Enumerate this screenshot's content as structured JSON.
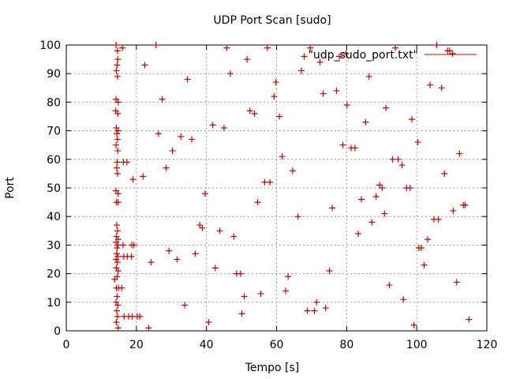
{
  "chart_data": {
    "type": "scatter",
    "title": "UDP Port Scan [sudo]",
    "xlabel": "Tempo [s]",
    "ylabel": "Port",
    "xlim": [
      0,
      120
    ],
    "ylim": [
      0,
      100
    ],
    "xticks": [
      0,
      20,
      40,
      60,
      80,
      100,
      120
    ],
    "yticks": [
      0,
      10,
      20,
      30,
      40,
      50,
      60,
      70,
      80,
      90,
      100
    ],
    "xtick_labels": [
      "0",
      "20",
      "40",
      "60",
      "80",
      "100",
      "120"
    ],
    "ytick_labels": [
      "0",
      "10",
      "20",
      "30",
      "40",
      "50",
      "60",
      "70",
      "80",
      "90",
      "100"
    ],
    "grid": true,
    "legend_position": "top-right",
    "marker": "plus",
    "color": "#d00000",
    "series": [
      {
        "name": "\"udp_sudo_port.txt\"",
        "points": [
          [
            14.2,
            100
          ],
          [
            14.6,
            98
          ],
          [
            14.7,
            95
          ],
          [
            14.5,
            93
          ],
          [
            14.3,
            91
          ],
          [
            14.6,
            89
          ],
          [
            14.2,
            81
          ],
          [
            14.8,
            80
          ],
          [
            14.1,
            77
          ],
          [
            14.7,
            76
          ],
          [
            14.3,
            71
          ],
          [
            14.8,
            70
          ],
          [
            14.4,
            69
          ],
          [
            14.6,
            67
          ],
          [
            14.2,
            65
          ],
          [
            14.7,
            63
          ],
          [
            14.5,
            59
          ],
          [
            14.4,
            57
          ],
          [
            14.6,
            55
          ],
          [
            14.2,
            49
          ],
          [
            14.8,
            48
          ],
          [
            14.3,
            45
          ],
          [
            14.8,
            45
          ],
          [
            14.4,
            37
          ],
          [
            14.6,
            35
          ],
          [
            14.3,
            33
          ],
          [
            14.8,
            32
          ],
          [
            14.2,
            31
          ],
          [
            14.7,
            30
          ],
          [
            14.5,
            29
          ],
          [
            14.4,
            27
          ],
          [
            14.7,
            26
          ],
          [
            14.2,
            25
          ],
          [
            14.6,
            24
          ],
          [
            14.3,
            22
          ],
          [
            14.8,
            21
          ],
          [
            14.5,
            19
          ],
          [
            13.8,
            18
          ],
          [
            14.3,
            15
          ],
          [
            14.9,
            15
          ],
          [
            14.5,
            12
          ],
          [
            14.2,
            10
          ],
          [
            14.7,
            9
          ],
          [
            14.4,
            7
          ],
          [
            14.6,
            5
          ],
          [
            14.3,
            3
          ],
          [
            14.8,
            1
          ],
          [
            16.0,
            99
          ],
          [
            16.3,
            59
          ],
          [
            17.3,
            59
          ],
          [
            16.2,
            30
          ],
          [
            16.4,
            26
          ],
          [
            17.4,
            26
          ],
          [
            15.8,
            15
          ],
          [
            16.5,
            5
          ],
          [
            17.8,
            5
          ],
          [
            18.8,
            5
          ],
          [
            18.6,
            26
          ],
          [
            18.7,
            30
          ],
          [
            19.3,
            30
          ],
          [
            19.0,
            53
          ],
          [
            20.3,
            5
          ],
          [
            21.0,
            5
          ],
          [
            21.9,
            54
          ],
          [
            22.4,
            93
          ],
          [
            23.5,
            1
          ],
          [
            24.2,
            24
          ],
          [
            25.6,
            100
          ],
          [
            26.3,
            69
          ],
          [
            27.4,
            81
          ],
          [
            28.5,
            57
          ],
          [
            29.3,
            28
          ],
          [
            30.3,
            63
          ],
          [
            31.6,
            25
          ],
          [
            32.7,
            68
          ],
          [
            33.8,
            9
          ],
          [
            34.6,
            88
          ],
          [
            35.8,
            67
          ],
          [
            36.8,
            27
          ],
          [
            38.1,
            37
          ],
          [
            38.8,
            36
          ],
          [
            39.6,
            48
          ],
          [
            40.6,
            3
          ],
          [
            41.8,
            72
          ],
          [
            42.5,
            22
          ],
          [
            43.8,
            35
          ],
          [
            45.0,
            71
          ],
          [
            45.8,
            99
          ],
          [
            46.8,
            90
          ],
          [
            47.8,
            33
          ],
          [
            48.6,
            20
          ],
          [
            49.7,
            20
          ],
          [
            50.1,
            6
          ],
          [
            50.8,
            12
          ],
          [
            51.6,
            95
          ],
          [
            52.4,
            77
          ],
          [
            53.7,
            76
          ],
          [
            54.6,
            45
          ],
          [
            55.5,
            13
          ],
          [
            56.6,
            52
          ],
          [
            57.4,
            99
          ],
          [
            58.1,
            52
          ],
          [
            59.3,
            82
          ],
          [
            59.8,
            87
          ],
          [
            60.8,
            75
          ],
          [
            61.6,
            61
          ],
          [
            62.6,
            14
          ],
          [
            63.3,
            19
          ],
          [
            64.6,
            56
          ],
          [
            66.1,
            40
          ],
          [
            67.1,
            91
          ],
          [
            67.9,
            96
          ],
          [
            68.8,
            7
          ],
          [
            69.6,
            99
          ],
          [
            70.8,
            7
          ],
          [
            71.4,
            10
          ],
          [
            72.4,
            94
          ],
          [
            73.3,
            83
          ],
          [
            74.0,
            8
          ],
          [
            75.1,
            21
          ],
          [
            75.9,
            43
          ],
          [
            77.1,
            84
          ],
          [
            77.9,
            96
          ],
          [
            78.9,
            65
          ],
          [
            79.8,
            97
          ],
          [
            80.1,
            79
          ],
          [
            81.3,
            64
          ],
          [
            82.4,
            64
          ],
          [
            83.3,
            34
          ],
          [
            84.2,
            46
          ],
          [
            85.4,
            73
          ],
          [
            86.4,
            89
          ],
          [
            87.2,
            38
          ],
          [
            88.4,
            47
          ],
          [
            89.4,
            51
          ],
          [
            90.1,
            50
          ],
          [
            90.8,
            41
          ],
          [
            91.2,
            78
          ],
          [
            92.2,
            16
          ],
          [
            93.1,
            60
          ],
          [
            93.9,
            99
          ],
          [
            94.7,
            60
          ],
          [
            95.8,
            58
          ],
          [
            96.2,
            11
          ],
          [
            97.1,
            50
          ],
          [
            98.1,
            50
          ],
          [
            98.6,
            74
          ],
          [
            99.2,
            2
          ],
          [
            100.3,
            66
          ],
          [
            100.6,
            29
          ],
          [
            101.3,
            29
          ],
          [
            102.1,
            23
          ],
          [
            103.1,
            32
          ],
          [
            103.8,
            86
          ],
          [
            104.9,
            39
          ],
          [
            105.7,
            100
          ],
          [
            106.2,
            39
          ],
          [
            107.1,
            85
          ],
          [
            107.9,
            55
          ],
          [
            108.8,
            98
          ],
          [
            109.4,
            98
          ],
          [
            110.2,
            97
          ],
          [
            110.4,
            42
          ],
          [
            111.4,
            17
          ],
          [
            112.2,
            62
          ],
          [
            113.3,
            44
          ],
          [
            113.8,
            44
          ],
          [
            114.9,
            4
          ]
        ]
      }
    ]
  }
}
